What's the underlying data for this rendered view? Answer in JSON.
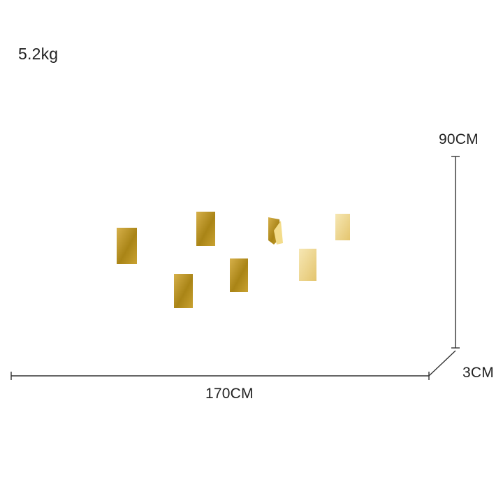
{
  "product": {
    "weight": "5.2kg",
    "dimensions": {
      "height": "90CM",
      "width": "170CM",
      "depth": "3CM"
    }
  },
  "colors": {
    "background": "#ffffff",
    "gold": "#c9a227",
    "gold_light": "#f1dc96",
    "gold_dark": "#9c7a12",
    "dimension_line": "#333333"
  }
}
